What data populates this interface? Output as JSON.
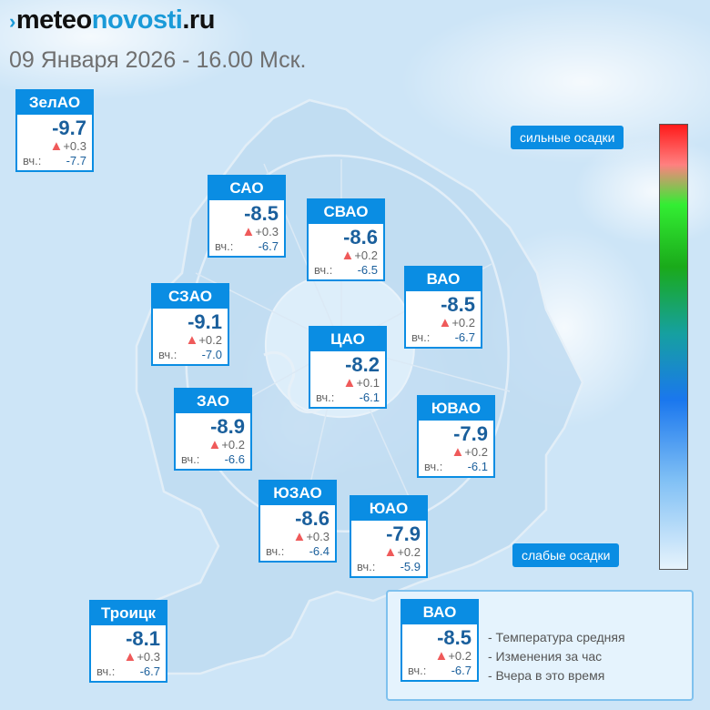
{
  "header": {
    "logo_part1": "meteo",
    "logo_part2": "novosti",
    "logo_part3": ".ru",
    "date": "09 Января 2026 - 16.00 Мск."
  },
  "districts": [
    {
      "name": "ЗелАО",
      "temp": "-9.7",
      "change": "+0.3",
      "yesterday_label": "вч.:",
      "yesterday": "-7.7"
    },
    {
      "name": "САО",
      "temp": "-8.5",
      "change": "+0.3",
      "yesterday_label": "вч.:",
      "yesterday": "-6.7"
    },
    {
      "name": "СВАО",
      "temp": "-8.6",
      "change": "+0.2",
      "yesterday_label": "вч.:",
      "yesterday": "-6.5"
    },
    {
      "name": "СЗАО",
      "temp": "-9.1",
      "change": "+0.2",
      "yesterday_label": "вч.:",
      "yesterday": "-7.0"
    },
    {
      "name": "ВАО",
      "temp": "-8.5",
      "change": "+0.2",
      "yesterday_label": "вч.:",
      "yesterday": "-6.7"
    },
    {
      "name": "ЦАО",
      "temp": "-8.2",
      "change": "+0.1",
      "yesterday_label": "вч.:",
      "yesterday": "-6.1"
    },
    {
      "name": "ЗАО",
      "temp": "-8.9",
      "change": "+0.2",
      "yesterday_label": "вч.:",
      "yesterday": "-6.6"
    },
    {
      "name": "ЮВАО",
      "temp": "-7.9",
      "change": "+0.2",
      "yesterday_label": "вч.:",
      "yesterday": "-6.1"
    },
    {
      "name": "ЮЗАО",
      "temp": "-8.6",
      "change": "+0.3",
      "yesterday_label": "вч.:",
      "yesterday": "-6.4"
    },
    {
      "name": "ЮАО",
      "temp": "-7.9",
      "change": "+0.2",
      "yesterday_label": "вч.:",
      "yesterday": "-5.9"
    },
    {
      "name": "Троицк",
      "temp": "-8.1",
      "change": "+0.3",
      "yesterday_label": "вч.:",
      "yesterday": "-6.7"
    }
  ],
  "scale": {
    "top_label": "сильные осадки",
    "bottom_label": "слабые осадки"
  },
  "legend": {
    "sample": {
      "name": "ВАО",
      "temp": "-8.5",
      "change": "+0.2",
      "yesterday_label": "вч.:",
      "yesterday": "-6.7"
    },
    "items": [
      "- Температура средняя",
      "- Изменения за час",
      "- Вчера в это время"
    ]
  },
  "colors": {
    "accent": "#0a8de3",
    "temp_text": "#1a5f9c",
    "change_triangle": "#ef5a5a",
    "brand_blue": "#1a9ad8"
  }
}
